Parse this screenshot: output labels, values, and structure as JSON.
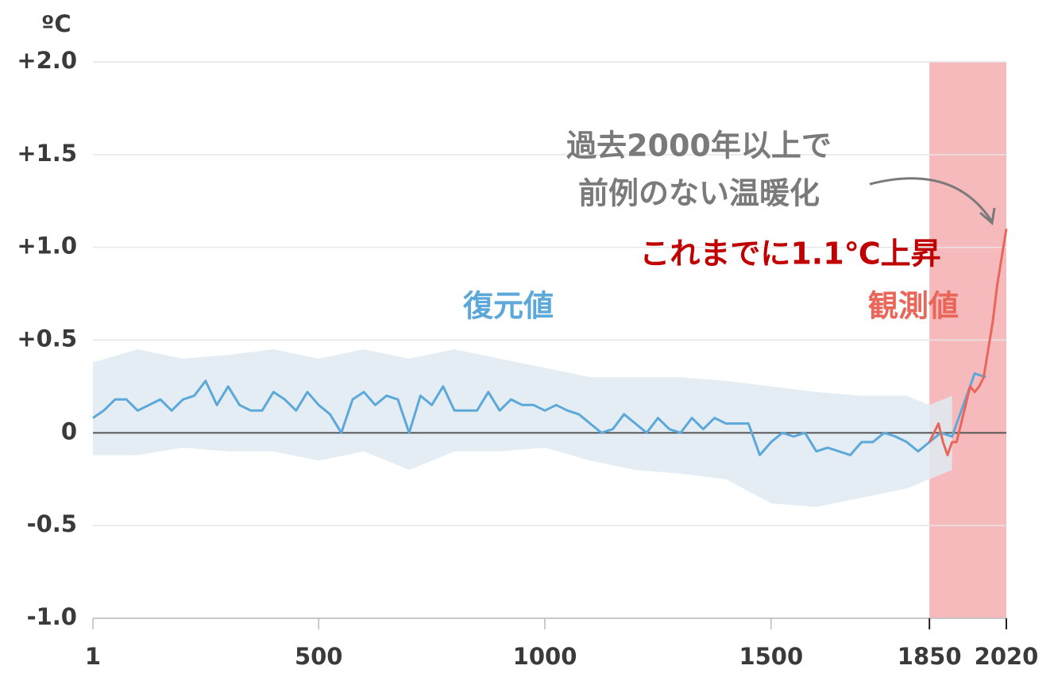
{
  "chart_data": {
    "type": "line",
    "unit": "ºC",
    "ylim": [
      -1.0,
      2.0
    ],
    "yticks": [
      {
        "value": 2.0,
        "label": "+2.0"
      },
      {
        "value": 1.5,
        "label": "+1.5"
      },
      {
        "value": 1.0,
        "label": "+1.0"
      },
      {
        "value": 0.5,
        "label": "+0.5"
      },
      0,
      {
        "value": -0.5,
        "label": "-0.5"
      },
      {
        "value": -1.0,
        "label": "-1.0"
      }
    ],
    "xlim": [
      1,
      2020
    ],
    "xticks": [
      1,
      500,
      1000,
      1500,
      1850,
      2020
    ],
    "grid": true,
    "highlight_span": [
      1850,
      2020
    ],
    "highlight_color": "#f6b9bc",
    "band": {
      "color": "#dfeaf2",
      "x": [
        1,
        100,
        200,
        300,
        400,
        500,
        600,
        700,
        800,
        900,
        1000,
        1100,
        1200,
        1300,
        1400,
        1500,
        1600,
        1700,
        1800,
        1850,
        1900
      ],
      "lower": [
        -0.12,
        -0.12,
        -0.08,
        -0.1,
        -0.1,
        -0.15,
        -0.1,
        -0.2,
        -0.1,
        -0.1,
        -0.08,
        -0.15,
        -0.2,
        -0.22,
        -0.25,
        -0.38,
        -0.4,
        -0.35,
        -0.3,
        -0.25,
        -0.2
      ],
      "upper": [
        0.38,
        0.45,
        0.4,
        0.42,
        0.45,
        0.4,
        0.45,
        0.4,
        0.45,
        0.4,
        0.35,
        0.3,
        0.3,
        0.3,
        0.28,
        0.25,
        0.22,
        0.2,
        0.2,
        0.15,
        0.2
      ]
    },
    "series": [
      {
        "name": "復元値",
        "color": "#5ba8d9",
        "x": [
          1,
          25,
          50,
          75,
          100,
          125,
          150,
          175,
          200,
          225,
          250,
          275,
          300,
          325,
          350,
          375,
          400,
          425,
          450,
          475,
          500,
          525,
          550,
          575,
          600,
          625,
          650,
          675,
          700,
          725,
          750,
          775,
          800,
          825,
          850,
          875,
          900,
          925,
          950,
          975,
          1000,
          1025,
          1050,
          1075,
          1100,
          1125,
          1150,
          1175,
          1200,
          1225,
          1250,
          1275,
          1300,
          1325,
          1350,
          1375,
          1400,
          1425,
          1450,
          1475,
          1500,
          1525,
          1550,
          1575,
          1600,
          1625,
          1650,
          1675,
          1700,
          1725,
          1750,
          1775,
          1800,
          1825,
          1850,
          1875,
          1900,
          1925,
          1950,
          1975
        ],
        "values": [
          0.08,
          0.12,
          0.18,
          0.18,
          0.12,
          0.15,
          0.18,
          0.12,
          0.18,
          0.2,
          0.28,
          0.15,
          0.25,
          0.15,
          0.12,
          0.12,
          0.22,
          0.18,
          0.12,
          0.22,
          0.15,
          0.1,
          0.0,
          0.18,
          0.22,
          0.15,
          0.2,
          0.18,
          0.0,
          0.2,
          0.15,
          0.25,
          0.12,
          0.12,
          0.12,
          0.22,
          0.12,
          0.18,
          0.15,
          0.15,
          0.12,
          0.15,
          0.12,
          0.1,
          0.05,
          0.0,
          0.02,
          0.1,
          0.05,
          0.0,
          0.08,
          0.02,
          0.0,
          0.08,
          0.02,
          0.08,
          0.05,
          0.05,
          0.05,
          -0.12,
          -0.05,
          0.0,
          -0.02,
          0.0,
          -0.1,
          -0.08,
          -0.1,
          -0.12,
          -0.05,
          -0.05,
          0.0,
          -0.02,
          -0.05,
          -0.1,
          -0.05,
          0.0,
          -0.02,
          0.15,
          0.32,
          0.3
        ]
      },
      {
        "name": "観測値",
        "color": "#e8665a",
        "x": [
          1850,
          1860,
          1870,
          1880,
          1890,
          1900,
          1910,
          1920,
          1930,
          1940,
          1950,
          1960,
          1970,
          1980,
          1990,
          2000,
          2010,
          2020
        ],
        "values": [
          -0.05,
          0.0,
          0.05,
          -0.05,
          -0.12,
          -0.05,
          -0.05,
          0.05,
          0.15,
          0.25,
          0.22,
          0.25,
          0.3,
          0.45,
          0.6,
          0.8,
          0.95,
          1.1
        ]
      }
    ],
    "annotations": [
      {
        "text": "過去2000年以上で",
        "color": "#7a7a7a"
      },
      {
        "text": "前例のない温暖化",
        "color": "#7a7a7a"
      },
      {
        "text": "これまでに1.1℃上昇",
        "color": "#c00000"
      }
    ]
  }
}
